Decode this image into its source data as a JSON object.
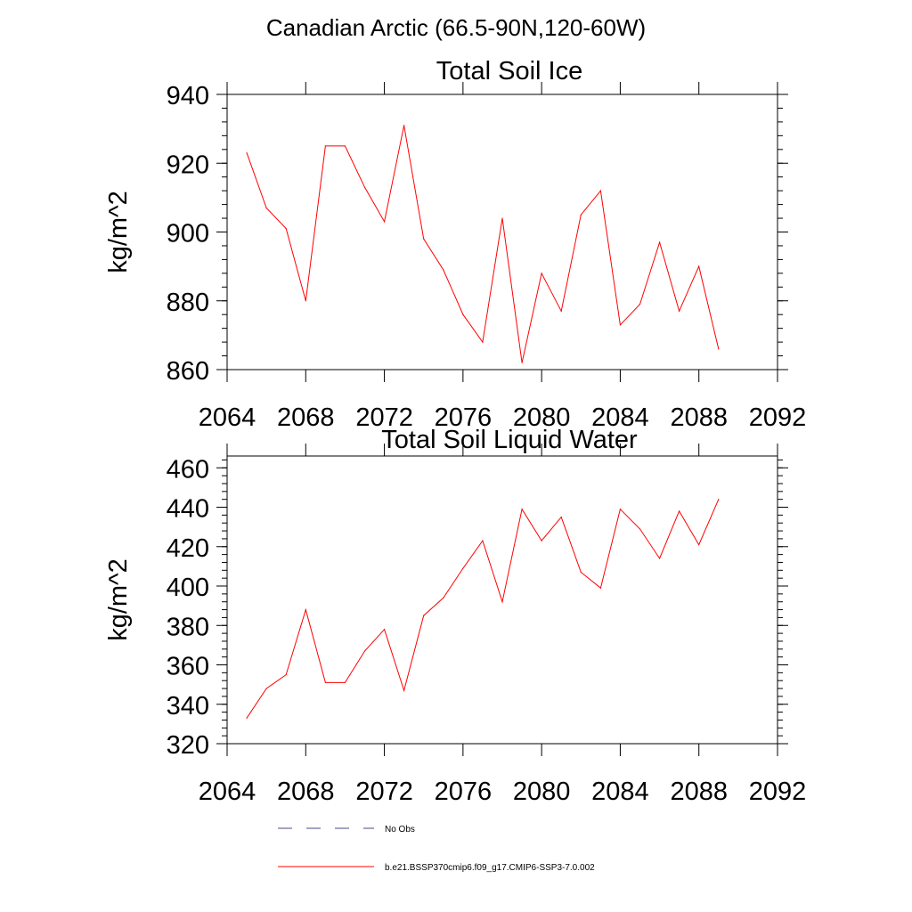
{
  "page": {
    "title": "Canadian Arctic (66.5-90N,120-60W)"
  },
  "chart_data": [
    {
      "type": "line",
      "title": "Total Soil Ice",
      "xlabel": "",
      "ylabel": "kg/m^2",
      "xlim": [
        2064,
        2092
      ],
      "ylim": [
        860,
        940
      ],
      "xticks": [
        2064,
        2068,
        2072,
        2076,
        2080,
        2084,
        2088,
        2092
      ],
      "yticks": [
        860,
        880,
        900,
        920,
        940
      ],
      "series": [
        {
          "name": "b.e21.BSSP370cmip6.f09_g17.CMIP6-SSP3-7.0.002",
          "color": "#ff0000",
          "x": [
            2065,
            2066,
            2067,
            2068,
            2069,
            2070,
            2071,
            2072,
            2073,
            2074,
            2075,
            2076,
            2077,
            2078,
            2079,
            2080,
            2081,
            2082,
            2083,
            2084,
            2085,
            2086,
            2087,
            2088,
            2089
          ],
          "y": [
            923,
            907,
            901,
            880,
            925,
            925,
            913,
            903,
            931,
            898,
            889,
            876,
            868,
            904,
            862,
            888,
            877,
            905,
            912,
            873,
            879,
            897,
            877,
            890,
            866
          ]
        }
      ]
    },
    {
      "type": "line",
      "title": "Total Soil Liquid Water",
      "xlabel": "",
      "ylabel": "kg/m^2",
      "xlim": [
        2064,
        2092
      ],
      "ylim": [
        320,
        466
      ],
      "xticks": [
        2064,
        2068,
        2072,
        2076,
        2080,
        2084,
        2088,
        2092
      ],
      "yticks": [
        320,
        340,
        360,
        380,
        400,
        420,
        440,
        460
      ],
      "series": [
        {
          "name": "b.e21.BSSP370cmip6.f09_g17.CMIP6-SSP3-7.0.002",
          "color": "#ff0000",
          "x": [
            2065,
            2066,
            2067,
            2068,
            2069,
            2070,
            2071,
            2072,
            2073,
            2074,
            2075,
            2076,
            2077,
            2078,
            2079,
            2080,
            2081,
            2082,
            2083,
            2084,
            2085,
            2086,
            2087,
            2088,
            2089
          ],
          "y": [
            333,
            348,
            355,
            388,
            351,
            351,
            367,
            378,
            347,
            385,
            394,
            409,
            423,
            392,
            439,
            423,
            435,
            407,
            399,
            439,
            429,
            414,
            438,
            421,
            444
          ]
        }
      ]
    }
  ],
  "legend": [
    {
      "label": "No Obs",
      "color": "#4a4a8c",
      "style": "dashed"
    },
    {
      "label": "b.e21.BSSP370cmip6.f09_g17.CMIP6-SSP3-7.0.002",
      "color": "#ff0000",
      "style": "solid"
    }
  ]
}
